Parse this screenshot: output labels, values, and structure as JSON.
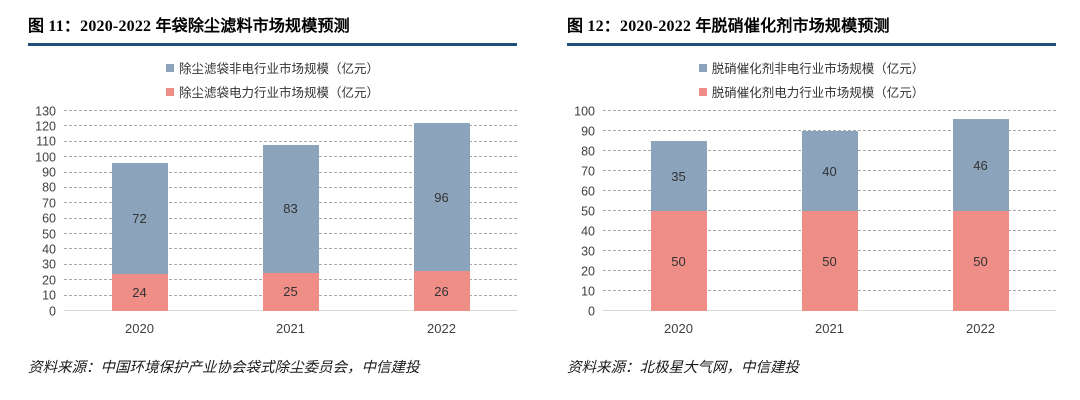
{
  "colors": {
    "title_rule": "#1f4e79",
    "blue_series": "#8ba3bb",
    "red_series": "#ee8e87",
    "gridline": "#a9a9a9",
    "baseline": "#d9d9d9"
  },
  "chart_data": [
    {
      "type": "bar",
      "stacked": true,
      "title": "图 11：2020-2022 年袋除尘滤料市场规模预测",
      "source": "资料来源：中国环境保护产业协会袋式除尘委员会，中信建投",
      "categories": [
        "2020",
        "2021",
        "2022"
      ],
      "legend": [
        {
          "label": "除尘滤袋非电行业市场规模（亿元）",
          "color": "#8ba3bb"
        },
        {
          "label": "除尘滤袋电力行业市场规模（亿元）",
          "color": "#ee8e87"
        }
      ],
      "series": [
        {
          "name": "除尘滤袋电力行业市场规模（亿元）",
          "color": "#ee8e87",
          "values": [
            24,
            25,
            26
          ]
        },
        {
          "name": "除尘滤袋非电行业市场规模（亿元）",
          "color": "#8ba3bb",
          "values": [
            72,
            83,
            96
          ]
        }
      ],
      "ylim": [
        0,
        130
      ],
      "ytick_step": 10,
      "grid": "horizontal-dashed",
      "legend_position": "top",
      "bar_labels": true
    },
    {
      "type": "bar",
      "stacked": true,
      "title": "图 12：2020-2022 年脱硝催化剂市场规模预测",
      "source": "资料来源：北极星大气网，中信建投",
      "categories": [
        "2020",
        "2021",
        "2022"
      ],
      "legend": [
        {
          "label": "脱硝催化剂非电行业市场规模（亿元）",
          "color": "#8ba3bb"
        },
        {
          "label": "脱硝催化剂电力行业市场规模（亿元）",
          "color": "#ee8e87"
        }
      ],
      "series": [
        {
          "name": "脱硝催化剂电力行业市场规模（亿元）",
          "color": "#ee8e87",
          "values": [
            50,
            50,
            50
          ]
        },
        {
          "name": "脱硝催化剂非电行业市场规模（亿元）",
          "color": "#8ba3bb",
          "values": [
            35,
            40,
            46
          ]
        }
      ],
      "ylim": [
        0,
        100
      ],
      "ytick_step": 10,
      "grid": "horizontal-dashed",
      "legend_position": "top",
      "bar_labels": true
    }
  ]
}
